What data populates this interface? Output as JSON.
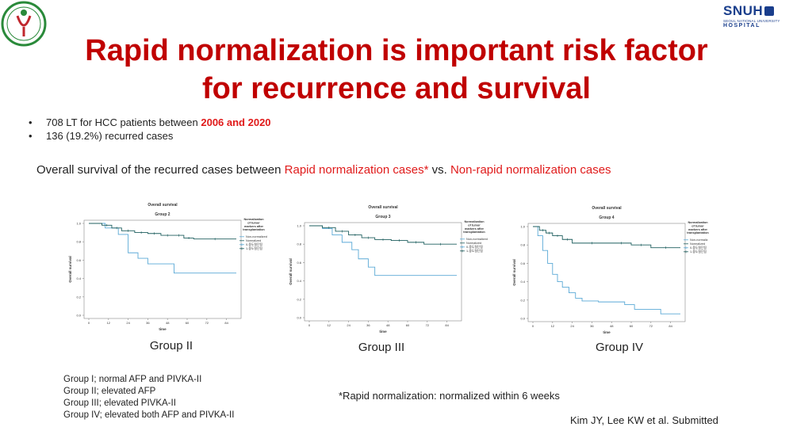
{
  "logo_right": {
    "text": "SNUH",
    "subtext": "SEOUL NATIONAL UNIVERSITY",
    "hospital": "HOSPITAL"
  },
  "title": {
    "line1": "Rapid normalization is important risk factor",
    "line2": "for recurrence and survival"
  },
  "bullets": [
    {
      "text": "708 LT for HCC patients between ",
      "highlight": "2006 and 2020"
    },
    {
      "text": "136 (19.2%) recurred cases",
      "highlight": ""
    }
  ],
  "subtitle": {
    "prefix": "Overall survival of the recurred cases between ",
    "rapid": "Rapid normalization cases*",
    "mid": " vs. ",
    "nonrapid": "Non-rapid normalization cases"
  },
  "chart_data": [
    {
      "type": "line",
      "title": "Overall survival",
      "subtitle": "Group 2",
      "xlabel": "time",
      "ylabel": "Overall survival",
      "xlim": [
        0,
        90
      ],
      "ylim": [
        0,
        1.0
      ],
      "x_ticks": [
        "0",
        "12",
        "24",
        "36",
        "48",
        "60",
        "72",
        "84"
      ],
      "y_ticks": [
        "0.0",
        "0.2",
        "0.4",
        "0.6",
        "0.8",
        "1.0"
      ],
      "legend_title": "Normalization of tumor markers after transplantation",
      "legend_position": "right",
      "legend_entries": [
        "Non-normalized",
        "Normalized",
        "0-중도절단됨",
        "1-중도절단됨"
      ],
      "series": [
        {
          "name": "Non-normalized",
          "color": "#5aa9d6",
          "x": [
            0,
            6,
            10,
            18,
            24,
            30,
            36,
            48,
            52,
            90
          ],
          "y": [
            1.0,
            1.0,
            0.95,
            0.88,
            0.68,
            0.62,
            0.56,
            0.56,
            0.46,
            0.46
          ]
        },
        {
          "name": "Normalized",
          "color": "#1f5f5f",
          "x": [
            0,
            8,
            14,
            20,
            28,
            36,
            44,
            52,
            58,
            64,
            90
          ],
          "y": [
            1.0,
            0.98,
            0.95,
            0.92,
            0.9,
            0.89,
            0.87,
            0.87,
            0.84,
            0.83,
            0.83
          ]
        }
      ]
    },
    {
      "type": "line",
      "title": "Overall survival",
      "subtitle": "Group 3",
      "xlabel": "time",
      "ylabel": "Overall survival",
      "xlim": [
        0,
        90
      ],
      "ylim": [
        0,
        1.0
      ],
      "x_ticks": [
        "0",
        "12",
        "24",
        "36",
        "48",
        "60",
        "72",
        "84"
      ],
      "y_ticks": [
        "0.0",
        "0.2",
        "0.4",
        "0.6",
        "0.8",
        "1.0"
      ],
      "legend_title": "Normalization of tumor markers after transplantation",
      "legend_position": "right",
      "legend_entries": [
        "Non-normalized",
        "Normalized",
        "0-중도절단됨",
        "1-중도절단됨"
      ],
      "series": [
        {
          "name": "Non-normalized",
          "color": "#5aa9d6",
          "x": [
            0,
            8,
            14,
            20,
            26,
            30,
            36,
            40,
            90
          ],
          "y": [
            1.0,
            0.97,
            0.9,
            0.82,
            0.74,
            0.64,
            0.55,
            0.46,
            0.46
          ]
        },
        {
          "name": "Normalized",
          "color": "#1f5f5f",
          "x": [
            0,
            8,
            16,
            24,
            32,
            40,
            50,
            60,
            70,
            90
          ],
          "y": [
            1.0,
            0.98,
            0.94,
            0.9,
            0.87,
            0.85,
            0.84,
            0.82,
            0.8,
            0.8
          ]
        }
      ]
    },
    {
      "type": "line",
      "title": "Overall survival",
      "subtitle": "Group 4",
      "xlabel": "time",
      "ylabel": "Overall survival",
      "xlim": [
        0,
        90
      ],
      "ylim": [
        0,
        1.0
      ],
      "x_ticks": [
        "0",
        "12",
        "24",
        "36",
        "48",
        "60",
        "72",
        "84"
      ],
      "y_ticks": [
        "0.0",
        "0.2",
        "0.4",
        "0.6",
        "0.8",
        "1.0"
      ],
      "legend_title": "Normalization of tumor markers after transplantation",
      "legend_position": "right",
      "legend_entries": [
        "Non-normaliz",
        "Normalized",
        "0-중도절단됨",
        "1-중도절단됨"
      ],
      "series": [
        {
          "name": "Non-normalized",
          "color": "#5aa9d6",
          "x": [
            0,
            3,
            6,
            9,
            12,
            15,
            18,
            22,
            26,
            30,
            40,
            56,
            62,
            74,
            78,
            90
          ],
          "y": [
            1.0,
            0.9,
            0.74,
            0.6,
            0.48,
            0.4,
            0.34,
            0.28,
            0.22,
            0.19,
            0.18,
            0.15,
            0.1,
            0.1,
            0.05,
            0.05
          ]
        },
        {
          "name": "Normalized",
          "color": "#1f5f5f",
          "x": [
            0,
            4,
            8,
            12,
            18,
            24,
            48,
            60,
            72,
            90
          ],
          "y": [
            1.0,
            0.96,
            0.93,
            0.9,
            0.86,
            0.82,
            0.82,
            0.8,
            0.77,
            0.77
          ]
        }
      ]
    }
  ],
  "group_labels": [
    "Group II",
    "Group III",
    "Group IV"
  ],
  "group_definitions": [
    "Group I; normal AFP and PIVKA-II",
    "Group II; elevated AFP",
    "Group III; elevated PIVKA-II",
    "Group IV; elevated both AFP and PIVKA-II"
  ],
  "footnote": "*Rapid normalization: normalized within 6 weeks",
  "citation": "Kim JY, Lee KW et al. Submitted",
  "colors": {
    "title_red": "#c00000",
    "highlight_red": "#e01a1a",
    "non_normalized": "#5aa9d6",
    "normalized": "#1f5f5f"
  }
}
